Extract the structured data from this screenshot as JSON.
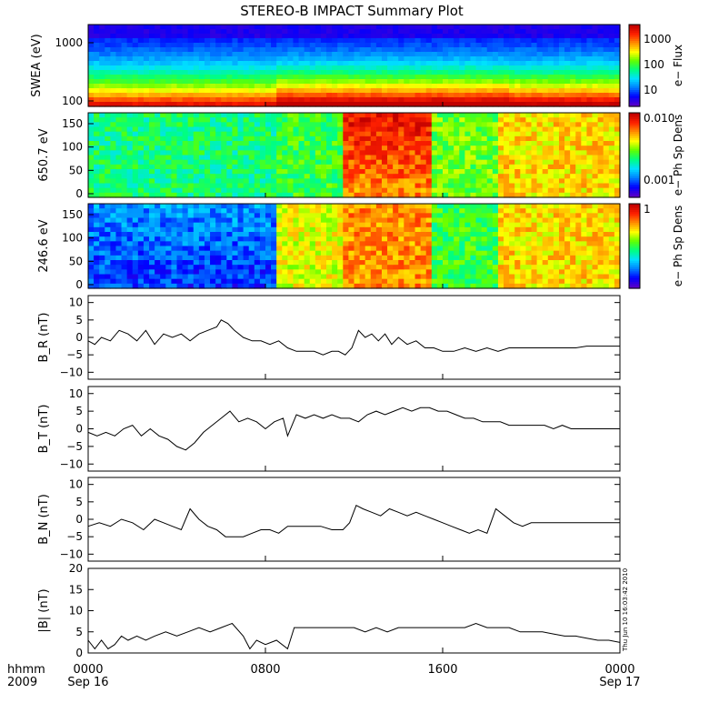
{
  "title": "STEREO-B IMPACT Summary Plot",
  "stamp": "Thu Jun 10 16:03:42 2010",
  "time_axis": {
    "row1_labels": [
      "hhmm",
      "0000",
      "0800",
      "1600",
      "0000"
    ],
    "row2_labels": [
      "2009",
      "Sep 16",
      "Sep 17"
    ]
  },
  "colorbar_ticks": {
    "swea": [
      "1000",
      "100",
      "10"
    ],
    "pad650": [
      "0.010",
      "0.001"
    ],
    "pad246": [
      "1"
    ]
  },
  "colors": {
    "spectrogram_palette": [
      "#5a00c8",
      "#0000ff",
      "#0080ff",
      "#00e0ff",
      "#00ff80",
      "#60ff00",
      "#ffff00",
      "#ff9000",
      "#ff2000",
      "#c00000"
    ]
  },
  "chart_data": [
    {
      "type": "heatmap",
      "ylabel": "SWEA (eV)",
      "y_ticks": [
        "1000",
        "100"
      ],
      "y_log": true,
      "colorbar_label": "e− Flux",
      "colorbar_log": true,
      "colorbar_range": [
        5,
        3000
      ],
      "x_range_hours": [
        0,
        24
      ],
      "description_values": {
        "segments_hours": [
          0,
          8.6,
          19,
          24
        ],
        "low_energy_level": [
          0.8,
          0.92,
          0.88
        ],
        "mid_energy_level": [
          0.55,
          0.6,
          0.58
        ]
      }
    },
    {
      "type": "heatmap",
      "ylabel": "650.7 eV",
      "y_ticks": [
        "150",
        "100",
        "50",
        "0"
      ],
      "y_range": [
        0,
        180
      ],
      "colorbar_label": "e− Ph Sp Dens",
      "colorbar_log": true,
      "colorbar_range": [
        0.0005,
        0.012
      ],
      "x_range_hours": [
        0,
        24
      ],
      "segments_hours": [
        0,
        8.6,
        11.5,
        15.5,
        18.5,
        24
      ],
      "segment_levels": [
        0.45,
        0.5,
        0.78,
        0.55,
        0.7
      ]
    },
    {
      "type": "heatmap",
      "ylabel": "246.6 eV",
      "y_ticks": [
        "150",
        "100",
        "50",
        "0"
      ],
      "y_range": [
        0,
        180
      ],
      "colorbar_label": "e− Ph Sp Dens",
      "colorbar_range": [
        0,
        1
      ],
      "x_range_hours": [
        0,
        24
      ],
      "segments_hours": [
        0,
        8.6,
        11.5,
        15.5,
        18.5,
        24
      ],
      "segment_levels": [
        0.25,
        0.65,
        0.78,
        0.5,
        0.7
      ]
    },
    {
      "type": "line",
      "ylabel": "B_R (nT)",
      "y_ticks": [
        "10",
        "5",
        "0",
        "−5",
        "−10"
      ],
      "ylim": [
        -12,
        12
      ],
      "x_hours": [
        0,
        0.3,
        0.6,
        1,
        1.4,
        1.8,
        2.2,
        2.6,
        3,
        3.4,
        3.8,
        4.2,
        4.6,
        5,
        5.4,
        5.8,
        6,
        6.3,
        6.6,
        7,
        7.4,
        7.8,
        8.2,
        8.6,
        9,
        9.4,
        9.8,
        10.2,
        10.6,
        11,
        11.3,
        11.6,
        11.9,
        12.2,
        12.5,
        12.8,
        13.1,
        13.4,
        13.7,
        14,
        14.4,
        14.8,
        15.2,
        15.6,
        16,
        16.5,
        17,
        17.5,
        18,
        18.5,
        19,
        19.5,
        20,
        20.5,
        21,
        21.5,
        22,
        22.5,
        23,
        23.5,
        24
      ],
      "y_values": [
        -1,
        -2,
        0,
        -1,
        2,
        1,
        -1,
        2,
        -2,
        1,
        0,
        1,
        -1,
        1,
        2,
        3,
        5,
        4,
        2,
        0,
        -1,
        -1,
        -2,
        -1,
        -3,
        -4,
        -4,
        -4,
        -5,
        -4,
        -4,
        -5,
        -3,
        2,
        0,
        1,
        -1,
        1,
        -2,
        0,
        -2,
        -1,
        -3,
        -3,
        -4,
        -4,
        -3,
        -4,
        -3,
        -4,
        -3,
        -3,
        -3,
        -3,
        -3,
        -3,
        -3,
        -2.5,
        -2.5,
        -2.5,
        -2.5
      ]
    },
    {
      "type": "line",
      "ylabel": "B_T (nT)",
      "y_ticks": [
        "10",
        "5",
        "0",
        "−5",
        "−10"
      ],
      "ylim": [
        -12,
        12
      ],
      "x_hours": [
        0,
        0.4,
        0.8,
        1.2,
        1.6,
        2,
        2.4,
        2.8,
        3.2,
        3.6,
        4,
        4.4,
        4.8,
        5.2,
        5.6,
        6,
        6.4,
        6.8,
        7.2,
        7.6,
        8,
        8.4,
        8.8,
        9,
        9.4,
        9.8,
        10.2,
        10.6,
        11,
        11.4,
        11.8,
        12.2,
        12.6,
        13,
        13.4,
        13.8,
        14.2,
        14.6,
        15,
        15.4,
        15.8,
        16.2,
        16.6,
        17,
        17.4,
        17.8,
        18.2,
        18.6,
        19,
        19.4,
        19.8,
        20.2,
        20.6,
        21,
        21.4,
        21.8,
        22.2,
        22.6,
        23,
        23.4,
        23.8,
        24
      ],
      "y_values": [
        -1,
        -2,
        -1,
        -2,
        0,
        1,
        -2,
        0,
        -2,
        -3,
        -5,
        -6,
        -4,
        -1,
        1,
        3,
        5,
        2,
        3,
        2,
        0,
        2,
        3,
        -2,
        4,
        3,
        4,
        3,
        4,
        3,
        3,
        2,
        4,
        5,
        4,
        5,
        6,
        5,
        6,
        6,
        5,
        5,
        4,
        3,
        3,
        2,
        2,
        2,
        1,
        1,
        1,
        1,
        1,
        0,
        1,
        0,
        0,
        0,
        0,
        0,
        0,
        0
      ]
    },
    {
      "type": "line",
      "ylabel": "B_N (nT)",
      "y_ticks": [
        "10",
        "5",
        "0",
        "−5",
        "−10"
      ],
      "ylim": [
        -12,
        12
      ],
      "x_hours": [
        0,
        0.5,
        1,
        1.5,
        2,
        2.5,
        3,
        3.4,
        3.8,
        4.2,
        4.6,
        5,
        5.4,
        5.8,
        6.2,
        6.6,
        7,
        7.4,
        7.8,
        8.2,
        8.6,
        9,
        9.5,
        10,
        10.5,
        11,
        11.5,
        11.8,
        12.1,
        12.4,
        12.8,
        13.2,
        13.6,
        14,
        14.4,
        14.8,
        15.2,
        15.6,
        16,
        16.4,
        16.8,
        17.2,
        17.6,
        18,
        18.4,
        18.8,
        19.2,
        19.6,
        20,
        20.5,
        21,
        21.5,
        22,
        22.5,
        23,
        23.5,
        24
      ],
      "y_values": [
        -2,
        -1,
        -2,
        0,
        -1,
        -3,
        0,
        -1,
        -2,
        -3,
        3,
        0,
        -2,
        -3,
        -5,
        -5,
        -5,
        -4,
        -3,
        -3,
        -4,
        -2,
        -2,
        -2,
        -2,
        -3,
        -3,
        -1,
        4,
        3,
        2,
        1,
        3,
        2,
        1,
        2,
        1,
        0,
        -1,
        -2,
        -3,
        -4,
        -3,
        -4,
        3,
        1,
        -1,
        -2,
        -1,
        -1,
        -1,
        -1,
        -1,
        -1,
        -1,
        -1,
        -1
      ]
    },
    {
      "type": "line",
      "ylabel": "|B| (nT)",
      "y_ticks": [
        "20",
        "15",
        "10",
        "5",
        "0"
      ],
      "ylim": [
        0,
        20
      ],
      "x_hours": [
        0,
        0.3,
        0.6,
        0.9,
        1.2,
        1.5,
        1.8,
        2.2,
        2.6,
        3,
        3.5,
        4,
        4.5,
        5,
        5.5,
        6,
        6.5,
        7,
        7.3,
        7.6,
        8,
        8.5,
        9,
        9.3,
        9.6,
        10,
        10.5,
        11,
        11.5,
        12,
        12.5,
        13,
        13.5,
        14,
        14.5,
        15,
        15.5,
        16,
        16.5,
        17,
        17.5,
        18,
        18.5,
        19,
        19.5,
        20,
        20.5,
        21,
        21.5,
        22,
        22.5,
        23,
        23.5,
        24
      ],
      "y_values": [
        3,
        1,
        3,
        1,
        2,
        4,
        3,
        4,
        3,
        4,
        5,
        4,
        5,
        6,
        5,
        6,
        7,
        4,
        1,
        3,
        2,
        3,
        1,
        6,
        6,
        6,
        6,
        6,
        6,
        6,
        5,
        6,
        5,
        6,
        6,
        6,
        6,
        6,
        6,
        6,
        7,
        6,
        6,
        6,
        5,
        5,
        5,
        4.5,
        4,
        4,
        3.5,
        3,
        3,
        2.5
      ]
    }
  ]
}
